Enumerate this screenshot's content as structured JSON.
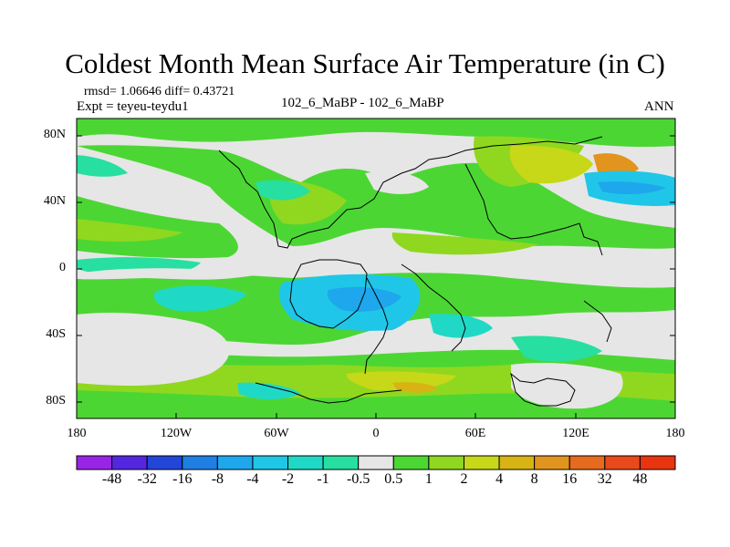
{
  "title": "Coldest Month Mean Surface Air Temperature (in C)",
  "stats": "rmsd= 1.06646 diff= 0.43721",
  "experiment": "Expt = teyeu-teydu1",
  "comparison": "102_6_MaBP - 102_6_MaBP",
  "season": "ANN",
  "lat_labels": [
    "80N",
    "40N",
    "0",
    "40S",
    "80S"
  ],
  "lon_labels": [
    "180",
    "120W",
    "60W",
    "0",
    "60E",
    "120E",
    "180"
  ],
  "colorbar": {
    "labels": [
      "-48",
      "-32",
      "-16",
      "-8",
      "-4",
      "-2",
      "-1",
      "-0.5",
      "0.5",
      "1",
      "2",
      "4",
      "8",
      "16",
      "32",
      "48"
    ],
    "colors": [
      "#9a24e6",
      "#5526e0",
      "#2146d8",
      "#1f7fe3",
      "#1ea7ec",
      "#1fc6e8",
      "#1fd9c6",
      "#27dfa0",
      "#e6e6e6",
      "#4cd634",
      "#8fd81f",
      "#c7d818",
      "#d7b414",
      "#e1941e",
      "#e66b1e",
      "#e84a1a",
      "#e8340f"
    ]
  }
}
